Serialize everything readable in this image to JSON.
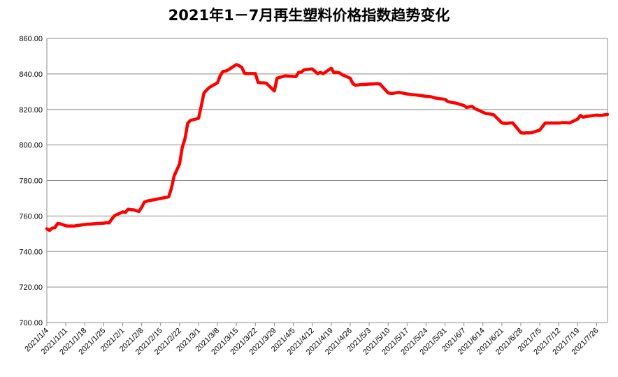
{
  "chart_data": {
    "type": "line",
    "title": "2021年1－7月再生塑料价格指数趋势变化",
    "xlabel": "",
    "ylabel": "",
    "ylim": [
      700,
      860
    ],
    "y_ticks": [
      "700.00",
      "720.00",
      "740.00",
      "760.00",
      "780.00",
      "800.00",
      "820.00",
      "840.00",
      "860.00"
    ],
    "x_tick_labels": [
      "2021/1/4",
      "2021/1/11",
      "2021/1/18",
      "2021/1/25",
      "2021/2/1",
      "2021/2/8",
      "2021/2/15",
      "2021/2/22",
      "2021/3/1",
      "2021/3/8",
      "2021/3/15",
      "2021/3/22",
      "2021/3/29",
      "2021/4/5",
      "2021/4/12",
      "2021/4/19",
      "2021/4/26",
      "2021/5/3",
      "2021/5/10",
      "2021/5/17",
      "2021/5/24",
      "2021/5/31",
      "2021/6/7",
      "2021/6/14",
      "2021/6/21",
      "2021/6/28",
      "2021/7/5",
      "2021/7/12",
      "2021/7/19",
      "2021/7/26"
    ],
    "grid": true,
    "legend": "none",
    "line_color": "#ff0000",
    "series": [
      {
        "x": [
          "2021/1/4",
          "2021/1/5",
          "2021/1/6",
          "2021/1/7",
          "2021/1/8",
          "2021/1/9",
          "2021/1/11",
          "2021/1/12",
          "2021/1/13",
          "2021/1/14",
          "2021/1/15",
          "2021/1/18",
          "2021/1/19",
          "2021/1/20",
          "2021/1/21",
          "2021/1/22",
          "2021/1/25",
          "2021/1/26",
          "2021/1/27",
          "2021/1/28",
          "2021/1/29",
          "2021/2/1",
          "2021/2/2",
          "2021/2/3",
          "2021/2/4",
          "2021/2/5",
          "2021/2/7",
          "2021/2/8",
          "2021/2/9",
          "2021/2/10",
          "2021/2/18",
          "2021/2/19",
          "2021/2/20",
          "2021/2/22",
          "2021/2/23",
          "2021/2/24",
          "2021/2/25",
          "2021/2/26",
          "2021/3/1",
          "2021/3/2",
          "2021/3/3",
          "2021/3/4",
          "2021/3/5",
          "2021/3/8",
          "2021/3/9",
          "2021/3/10",
          "2021/3/11",
          "2021/3/12",
          "2021/3/15",
          "2021/3/16",
          "2021/3/17",
          "2021/3/18",
          "2021/3/19",
          "2021/3/22",
          "2021/3/23",
          "2021/3/24",
          "2021/3/25",
          "2021/3/26",
          "2021/3/29",
          "2021/3/30",
          "2021/3/31",
          "2021/4/1",
          "2021/4/2",
          "2021/4/6",
          "2021/4/7",
          "2021/4/8",
          "2021/4/9",
          "2021/4/12",
          "2021/4/13",
          "2021/4/14",
          "2021/4/15",
          "2021/4/16",
          "2021/4/19",
          "2021/4/20",
          "2021/4/21",
          "2021/4/22",
          "2021/4/23",
          "2021/4/26",
          "2021/4/27",
          "2021/4/28",
          "2021/4/29",
          "2021/4/30",
          "2021/5/6",
          "2021/5/7",
          "2021/5/10",
          "2021/5/11",
          "2021/5/12",
          "2021/5/13",
          "2021/5/14",
          "2021/5/17",
          "2021/5/18",
          "2021/5/19",
          "2021/5/20",
          "2021/5/21",
          "2021/5/24",
          "2021/5/25",
          "2021/5/26",
          "2021/5/27",
          "2021/5/28",
          "2021/5/31",
          "2021/6/1",
          "2021/6/2",
          "2021/6/3",
          "2021/6/4",
          "2021/6/7",
          "2021/6/8",
          "2021/6/9",
          "2021/6/10",
          "2021/6/11",
          "2021/6/15",
          "2021/6/16",
          "2021/6/17",
          "2021/6/18",
          "2021/6/21",
          "2021/6/22",
          "2021/6/23",
          "2021/6/24",
          "2021/6/25",
          "2021/6/28",
          "2021/6/29",
          "2021/6/30",
          "2021/7/1",
          "2021/7/2",
          "2021/7/5",
          "2021/7/6",
          "2021/7/7",
          "2021/7/8",
          "2021/7/9",
          "2021/7/12",
          "2021/7/13",
          "2021/7/14",
          "2021/7/15",
          "2021/7/16",
          "2021/7/19",
          "2021/7/20",
          "2021/7/21",
          "2021/7/22",
          "2021/7/23",
          "2021/7/26",
          "2021/7/27",
          "2021/7/28",
          "2021/7/29",
          "2021/7/30"
        ],
        "y": [
          752.8,
          751.9,
          753.2,
          753.4,
          755.8,
          755.6,
          754.5,
          754.3,
          754.4,
          754.3,
          754.6,
          755.2,
          755.4,
          755.4,
          755.6,
          755.7,
          756.0,
          756.2,
          756.1,
          758.3,
          760.2,
          762.3,
          762.0,
          763.8,
          763.6,
          763.5,
          762.5,
          764.9,
          767.8,
          768.4,
          770.8,
          775.6,
          782.6,
          789.2,
          798.6,
          803.5,
          812.2,
          813.8,
          815.0,
          821.8,
          829.2,
          830.9,
          832.4,
          835.0,
          839.0,
          841.4,
          841.6,
          842.3,
          845.3,
          844.6,
          843.6,
          840.3,
          840.2,
          840.2,
          835.2,
          835.0,
          835.0,
          834.8,
          830.4,
          837.6,
          838.1,
          838.4,
          838.9,
          838.5,
          840.9,
          841.1,
          842.3,
          842.8,
          841.5,
          840.1,
          840.9,
          840.1,
          843.2,
          840.7,
          840.8,
          840.6,
          839.6,
          837.6,
          834.5,
          833.6,
          833.8,
          834.0,
          834.5,
          834.3,
          829.3,
          829.0,
          829.1,
          829.4,
          829.6,
          828.7,
          828.5,
          828.3,
          828.2,
          828.0,
          827.4,
          827.3,
          827.1,
          826.6,
          826.3,
          825.7,
          824.5,
          824.1,
          823.8,
          823.6,
          822.2,
          821.1,
          821.5,
          821.7,
          820.5,
          817.7,
          817.6,
          817.3,
          817.0,
          812.4,
          812.2,
          812.2,
          812.4,
          812.4,
          806.9,
          806.7,
          806.8,
          806.8,
          806.9,
          808.4,
          810.4,
          812.3,
          812.3,
          812.3,
          812.3,
          812.5,
          812.6,
          812.5,
          812.4,
          814.6,
          816.6,
          815.6,
          816.0,
          816.2,
          816.8,
          816.6,
          816.7,
          817.0,
          817.2
        ]
      }
    ]
  }
}
